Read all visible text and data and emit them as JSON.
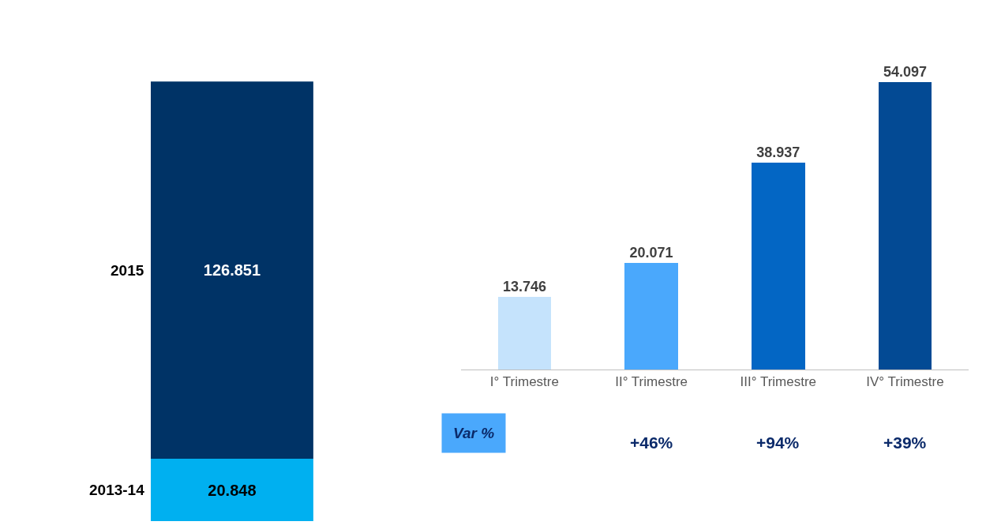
{
  "chart_data": [
    {
      "type": "bar",
      "stacked": true,
      "categories": [
        null
      ],
      "data_labels": true,
      "series": [
        {
          "name": "2013-14",
          "color": "#00b0f0",
          "values": [
            20.848
          ]
        },
        {
          "name": "2015",
          "color": "#003366",
          "values": [
            126.851
          ]
        }
      ]
    },
    {
      "type": "bar",
      "categories": [
        "I° Trimestre",
        "II° Trimestre",
        "III° Trimestre",
        "IV° Trimestre"
      ],
      "values": [
        13.746,
        20.071,
        38.937,
        54.097
      ],
      "colors": [
        "#c5e3fc",
        "#4aa8fc",
        "#0366c4",
        "#034a94"
      ],
      "data_labels": true,
      "annotations": [
        "Var %",
        "+46%",
        "+94%",
        "+39%"
      ]
    }
  ]
}
